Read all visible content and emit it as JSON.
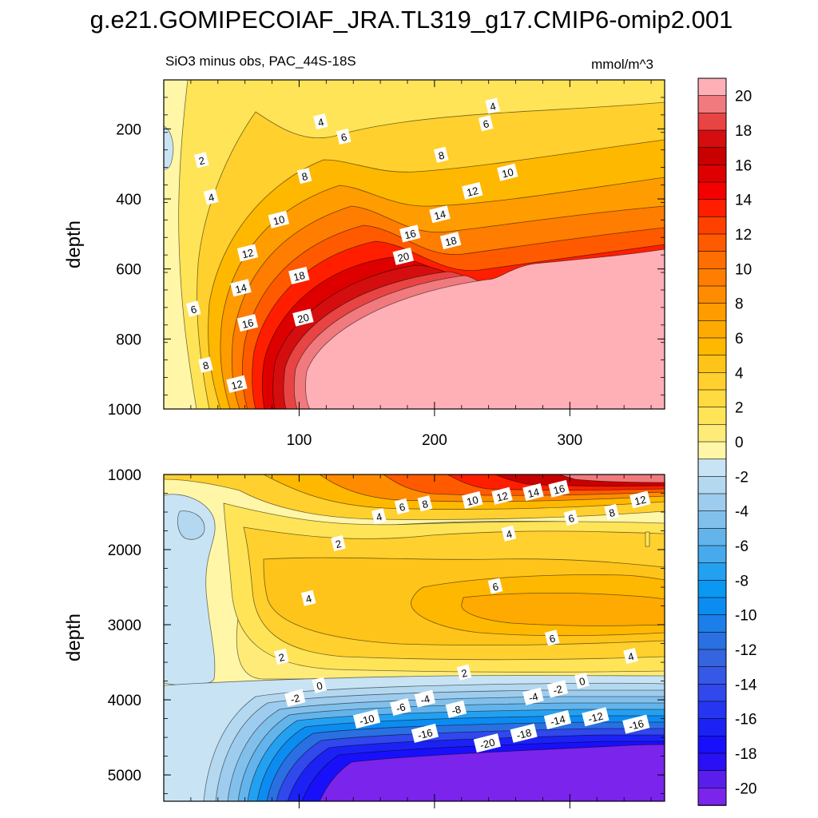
{
  "chart_data": {
    "type": "heatmap",
    "title": "g.e21.GOMIPECOIAF_JRA.TL319_g17.CMIP6-omip2.001",
    "subtitle_left": "SiO3 minus obs, PAC_44S-18S",
    "subtitle_right": "mmol/m^3",
    "variable_units": "mmol/m^3",
    "xlim": [
      0,
      370
    ],
    "x_ticks": [
      100,
      200,
      300
    ],
    "panels": [
      {
        "name": "upper",
        "ylabel": "depth",
        "ylim": [
          1000,
          60
        ],
        "y_ticks": [
          200,
          400,
          600,
          800,
          1000
        ],
        "contour_labels": [
          {
            "text": "4",
            "x": 116,
            "y": 180
          },
          {
            "text": "6",
            "x": 133,
            "y": 223
          },
          {
            "text": "2",
            "x": 28,
            "y": 290
          },
          {
            "text": "4",
            "x": 35,
            "y": 395
          },
          {
            "text": "8",
            "x": 104,
            "y": 335
          },
          {
            "text": "10",
            "x": 85,
            "y": 460
          },
          {
            "text": "12",
            "x": 62,
            "y": 555
          },
          {
            "text": "14",
            "x": 57,
            "y": 655
          },
          {
            "text": "16",
            "x": 62,
            "y": 755
          },
          {
            "text": "18",
            "x": 100,
            "y": 620
          },
          {
            "text": "20",
            "x": 103,
            "y": 740
          },
          {
            "text": "6",
            "x": 22,
            "y": 715
          },
          {
            "text": "8",
            "x": 31,
            "y": 875
          },
          {
            "text": "12",
            "x": 54,
            "y": 930
          },
          {
            "text": "4",
            "x": 243,
            "y": 135
          },
          {
            "text": "6",
            "x": 238,
            "y": 185
          },
          {
            "text": "8",
            "x": 205,
            "y": 275
          },
          {
            "text": "10",
            "x": 254,
            "y": 325
          },
          {
            "text": "12",
            "x": 228,
            "y": 378
          },
          {
            "text": "14",
            "x": 204,
            "y": 445
          },
          {
            "text": "16",
            "x": 182,
            "y": 500
          },
          {
            "text": "18",
            "x": 212,
            "y": 520
          },
          {
            "text": "20",
            "x": 177,
            "y": 565
          }
        ]
      },
      {
        "name": "lower",
        "ylabel": "depth",
        "ylim": [
          5350,
          1000
        ],
        "y_ticks": [
          1000,
          2000,
          3000,
          4000,
          5000
        ],
        "contour_labels": [
          {
            "text": "4",
            "x": 159,
            "y": 1560
          },
          {
            "text": "6",
            "x": 176,
            "y": 1430
          },
          {
            "text": "8",
            "x": 193,
            "y": 1390
          },
          {
            "text": "10",
            "x": 228,
            "y": 1345
          },
          {
            "text": "12",
            "x": 250,
            "y": 1290
          },
          {
            "text": "14",
            "x": 273,
            "y": 1240
          },
          {
            "text": "16",
            "x": 292,
            "y": 1195
          },
          {
            "text": "6",
            "x": 301,
            "y": 1580
          },
          {
            "text": "8",
            "x": 331,
            "y": 1505
          },
          {
            "text": "12",
            "x": 352,
            "y": 1340
          },
          {
            "text": "4",
            "x": 255,
            "y": 1790
          },
          {
            "text": "2",
            "x": 129,
            "y": 1920
          },
          {
            "text": "4",
            "x": 107,
            "y": 2650
          },
          {
            "text": "6",
            "x": 245,
            "y": 2490
          },
          {
            "text": "6",
            "x": 287,
            "y": 3180
          },
          {
            "text": "4",
            "x": 345,
            "y": 3420
          },
          {
            "text": "2",
            "x": 87,
            "y": 3430
          },
          {
            "text": "2",
            "x": 222,
            "y": 3640
          },
          {
            "text": "0",
            "x": 115,
            "y": 3810
          },
          {
            "text": "0",
            "x": 309,
            "y": 3750
          },
          {
            "text": "-2",
            "x": 97,
            "y": 3980
          },
          {
            "text": "-2",
            "x": 291,
            "y": 3860
          },
          {
            "text": "-4",
            "x": 193,
            "y": 3990
          },
          {
            "text": "-4",
            "x": 273,
            "y": 3960
          },
          {
            "text": "-6",
            "x": 175,
            "y": 4100
          },
          {
            "text": "-8",
            "x": 216,
            "y": 4130
          },
          {
            "text": "-10",
            "x": 150,
            "y": 4260
          },
          {
            "text": "-12",
            "x": 319,
            "y": 4230
          },
          {
            "text": "-14",
            "x": 291,
            "y": 4270
          },
          {
            "text": "-16",
            "x": 193,
            "y": 4450
          },
          {
            "text": "-16",
            "x": 349,
            "y": 4330
          },
          {
            "text": "-18",
            "x": 266,
            "y": 4450
          },
          {
            "text": "-20",
            "x": 239,
            "y": 4580
          }
        ]
      }
    ],
    "colorbar": {
      "labels": [
        "20",
        "18",
        "16",
        "14",
        "12",
        "10",
        "8",
        "6",
        "4",
        "2",
        "0",
        "-2",
        "-4",
        "-6",
        "-8",
        "-10",
        "-12",
        "-14",
        "-16",
        "-18",
        "-20"
      ],
      "levels_top_to_bottom": [
        21,
        20,
        19,
        18,
        17,
        16,
        15,
        14,
        13,
        12,
        11,
        10,
        9,
        8,
        7,
        6,
        5,
        4,
        3,
        2,
        1,
        0,
        -1,
        -2,
        -3,
        -4,
        -5,
        -6,
        -7,
        -8,
        -9,
        -10,
        -11,
        -12,
        -13,
        -14,
        -15,
        -16,
        -17,
        -18,
        -19,
        -20,
        -21
      ],
      "colors": [
        "#FFB0B6",
        "#F07A7E",
        "#E84444",
        "#D40E0E",
        "#C80000",
        "#DE0000",
        "#F50000",
        "#FF1E00",
        "#FF4100",
        "#FF5A00",
        "#FF6E00",
        "#FF7D00",
        "#FF8C00",
        "#FF9C00",
        "#FFAA00",
        "#FFB800",
        "#FFC41A",
        "#FFD02E",
        "#FFDA40",
        "#FFE458",
        "#FFEC78",
        "#FFF6A8",
        "#C8E4F4",
        "#B4D8F0",
        "#9ECCEE",
        "#82C0EC",
        "#64B4EC",
        "#46AAEC",
        "#24A0F0",
        "#0A98F2",
        "#0C8CF0",
        "#1C7EE8",
        "#2A70E2",
        "#3464DE",
        "#3658E6",
        "#3048EC",
        "#2636F0",
        "#1C22F4",
        "#1810FA",
        "#2A10F4",
        "#5A1EEC",
        "#7A24EC"
      ]
    }
  }
}
